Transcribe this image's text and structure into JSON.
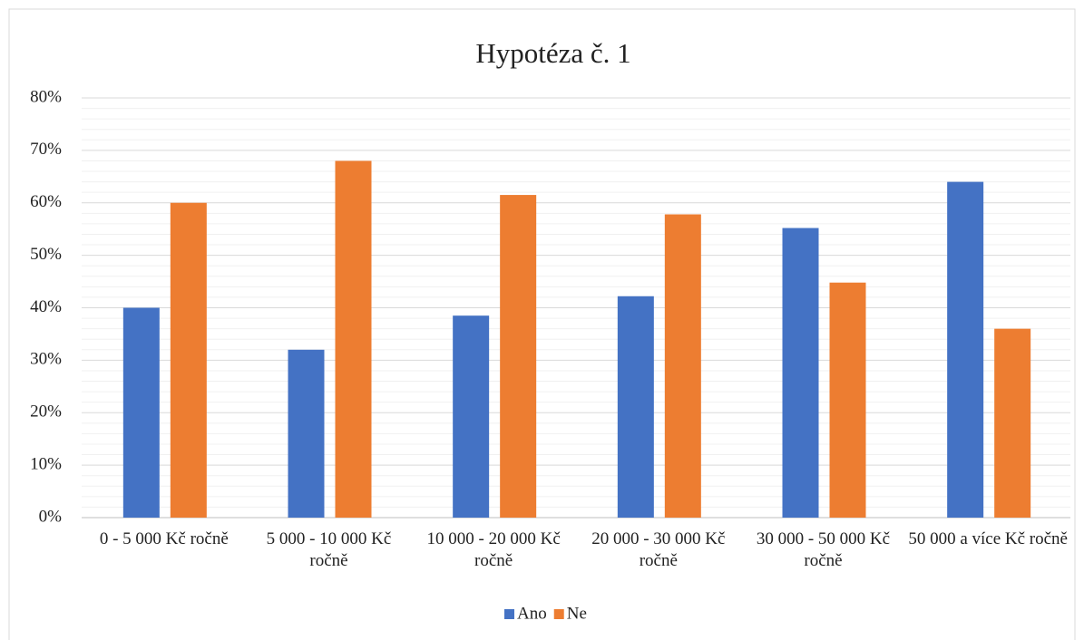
{
  "chart_data": {
    "type": "bar",
    "title": "Hypotéza č. 1",
    "categories": [
      "0 - 5 000 Kč ročně",
      "5 000 - 10 000 Kč ročně",
      "10 000 - 20 000 Kč ročně",
      "20 000 - 30 000 Kč ročně",
      "30 000 - 50 000 Kč ročně",
      "50 000 a více Kč ročně"
    ],
    "series": [
      {
        "name": "Ano",
        "color": "#4472c4",
        "values": [
          40,
          32,
          38.5,
          42.2,
          55.2,
          64
        ]
      },
      {
        "name": "Ne",
        "color": "#ed7d31",
        "values": [
          60,
          68,
          61.5,
          57.8,
          44.8,
          36
        ]
      }
    ],
    "ylim": [
      0,
      80
    ],
    "yticks": [
      {
        "value": 0,
        "label": "0%"
      },
      {
        "value": 10,
        "label": "10%"
      },
      {
        "value": 20,
        "label": "20%"
      },
      {
        "value": 30,
        "label": "30%"
      },
      {
        "value": 40,
        "label": "40%"
      },
      {
        "value": 50,
        "label": "50%"
      },
      {
        "value": 60,
        "label": "60%"
      },
      {
        "value": 70,
        "label": "70%"
      },
      {
        "value": 80,
        "label": "80%"
      }
    ],
    "grid": true,
    "legend": "bottom"
  }
}
